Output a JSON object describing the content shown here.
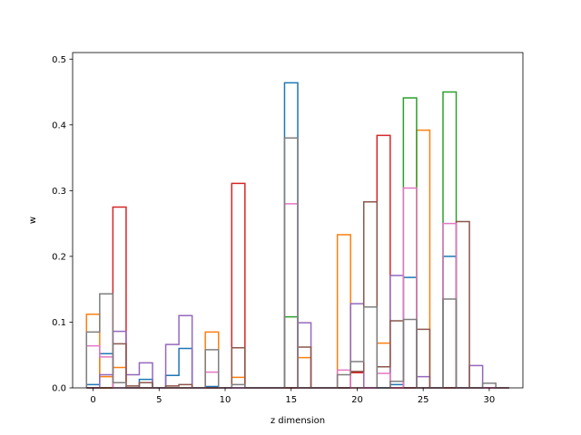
{
  "chart_data": {
    "type": "bar",
    "style": "step-histogram",
    "xlabel": "z dimension",
    "ylabel": "w",
    "xlim": [
      -1.55,
      32.55
    ],
    "ylim": [
      0,
      0.51
    ],
    "xticks": [
      0,
      5,
      10,
      15,
      20,
      25,
      30
    ],
    "yticks": [
      0.0,
      0.1,
      0.2,
      0.3,
      0.4,
      0.5
    ],
    "ytick_labels": [
      "0.0",
      "0.1",
      "0.2",
      "0.3",
      "0.4",
      "0.5"
    ],
    "grid": false,
    "legend": "none",
    "bin_edges": [
      -0.5,
      0.5,
      1.5,
      2.5,
      3.5,
      4.5,
      5.5,
      6.5,
      7.5,
      8.5,
      9.5,
      10.5,
      11.5,
      12.5,
      13.5,
      14.5,
      15.5,
      16.5,
      17.5,
      18.5,
      19.5,
      20.5,
      21.5,
      22.5,
      23.5,
      24.5,
      25.5,
      26.5,
      27.5,
      28.5,
      29.5,
      30.5,
      31.5
    ],
    "series": [
      {
        "color": "#1f77b4",
        "values": [
          0.005,
          0.052,
          0,
          0,
          0.013,
          0,
          0.019,
          0.06,
          0,
          0.002,
          0,
          0,
          0,
          0,
          0,
          0.464,
          0,
          0,
          0,
          0,
          0,
          0,
          0,
          0.005,
          0.168,
          0,
          0,
          0.2,
          0,
          0,
          0,
          0
        ]
      },
      {
        "color": "#ff7f0e",
        "values": [
          0.112,
          0.017,
          0.031,
          0,
          0,
          0,
          0,
          0,
          0,
          0.085,
          0,
          0.016,
          0,
          0,
          0,
          0,
          0.046,
          0,
          0,
          0.233,
          0,
          0,
          0.068,
          0,
          0,
          0.392,
          0,
          0,
          0,
          0,
          0,
          0
        ]
      },
      {
        "color": "#2ca02c",
        "values": [
          0,
          0,
          0,
          0,
          0,
          0,
          0,
          0,
          0,
          0,
          0,
          0,
          0,
          0,
          0,
          0.108,
          0,
          0,
          0,
          0,
          0,
          0,
          0,
          0,
          0.441,
          0,
          0,
          0.45,
          0,
          0,
          0,
          0
        ]
      },
      {
        "color": "#d62728",
        "values": [
          0,
          0,
          0.275,
          0,
          0,
          0,
          0,
          0,
          0,
          0,
          0,
          0.311,
          0,
          0,
          0,
          0,
          0,
          0,
          0,
          0,
          0.023,
          0,
          0.384,
          0,
          0,
          0,
          0,
          0,
          0,
          0,
          0,
          0
        ]
      },
      {
        "color": "#9467bd",
        "values": [
          0,
          0.02,
          0.086,
          0.02,
          0.038,
          0,
          0.066,
          0.11,
          0,
          0,
          0,
          0,
          0,
          0,
          0,
          0,
          0.099,
          0,
          0,
          0,
          0.128,
          0,
          0,
          0.171,
          0,
          0.017,
          0,
          0,
          0,
          0.034,
          0,
          0
        ]
      },
      {
        "color": "#8c564b",
        "values": [
          0,
          0,
          0.067,
          0.003,
          0.008,
          0,
          0.003,
          0.005,
          0,
          0,
          0,
          0.061,
          0,
          0,
          0,
          0,
          0.062,
          0,
          0,
          0,
          0.025,
          0.283,
          0.032,
          0.102,
          0,
          0.089,
          0,
          0,
          0.253,
          0,
          0,
          0
        ]
      },
      {
        "color": "#e377c2",
        "values": [
          0.064,
          0.047,
          0,
          0,
          0,
          0,
          0,
          0,
          0,
          0.024,
          0,
          0,
          0,
          0,
          0,
          0.28,
          0,
          0,
          0,
          0.027,
          0,
          0,
          0.022,
          0,
          0.304,
          0,
          0,
          0.25,
          0,
          0,
          0,
          0
        ]
      },
      {
        "color": "#7f7f7f",
        "values": [
          0.085,
          0.143,
          0.008,
          0,
          0,
          0,
          0,
          0,
          0,
          0.058,
          0,
          0.005,
          0,
          0,
          0,
          0.38,
          0,
          0,
          0,
          0.02,
          0.04,
          0.123,
          0,
          0.01,
          0.104,
          0,
          0,
          0.135,
          0,
          0,
          0.007,
          0
        ]
      }
    ]
  }
}
